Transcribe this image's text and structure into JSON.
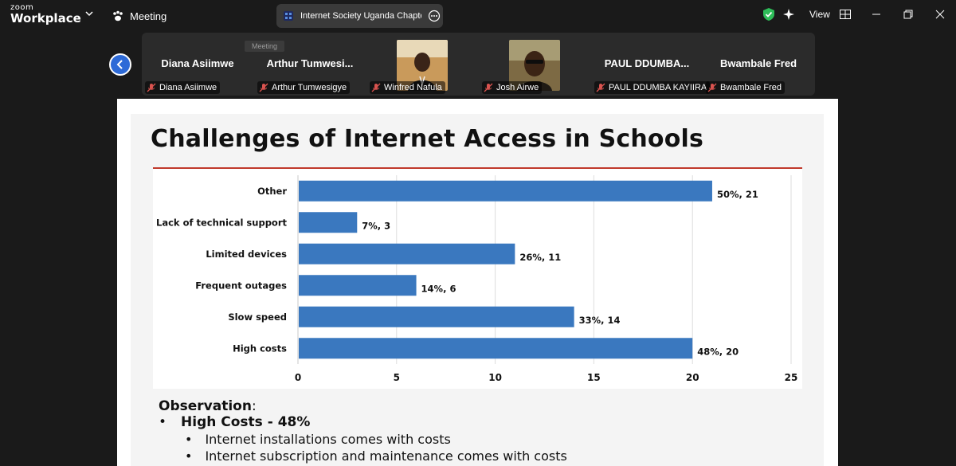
{
  "app": {
    "brand_small": "zoom",
    "brand_big": "Workplace",
    "meeting_label": "Meeting",
    "meeting_title": "Internet Society Uganda Chapter's",
    "view_label": "View"
  },
  "colors": {
    "accent_blue": "#2d6ad7",
    "bar_blue": "#3a78bf",
    "shield_green": "#2ebd59",
    "muted_red": "#d9534f",
    "title_rule": "#c0392b"
  },
  "participants": [
    {
      "display": "Diana Asiimwe",
      "tag": "Diana Asiimwe",
      "muted": true,
      "has_video": false
    },
    {
      "display": "Arthur  Tumwesi...",
      "tag": "Arthur Tumwesigye",
      "muted": true,
      "has_video": false
    },
    {
      "display": "",
      "tag": "Winfred Nafula",
      "muted": true,
      "has_video": true
    },
    {
      "display": "",
      "tag": "Josh Airwe",
      "muted": true,
      "has_video": true
    },
    {
      "display": "PAUL  DDUMBA...",
      "tag": "PAUL DDUMBA KAYIIRA",
      "muted": true,
      "has_video": false
    },
    {
      "display": "Bwambale Fred",
      "tag": "Bwambale Fred",
      "muted": true,
      "has_video": false
    }
  ],
  "tooltip": "Meeting",
  "slide": {
    "title": "Challenges of Internet Access in Schools",
    "observation_label": "Observation",
    "observation_colon": ":",
    "bullet1": "High Costs - 48%",
    "sub_bullets": [
      "Internet installations comes with costs",
      "Internet subscription and maintenance comes with costs"
    ]
  },
  "chart_data": {
    "type": "bar",
    "orientation": "horizontal",
    "categories": [
      "Other",
      "Lack of technical support",
      "Limited devices",
      "Frequent outages",
      "Slow speed",
      "High costs"
    ],
    "values": [
      21,
      3,
      11,
      6,
      14,
      20
    ],
    "data_labels": [
      "50%, 21",
      "7%, 3",
      "26%, 11",
      "14%, 6",
      "33%, 14",
      "48%, 20"
    ],
    "xlim": [
      0,
      25
    ],
    "x_ticks": [
      "0",
      "5",
      "10",
      "15",
      "20",
      "25"
    ],
    "grid": true,
    "title": "",
    "xlabel": "",
    "ylabel": ""
  }
}
